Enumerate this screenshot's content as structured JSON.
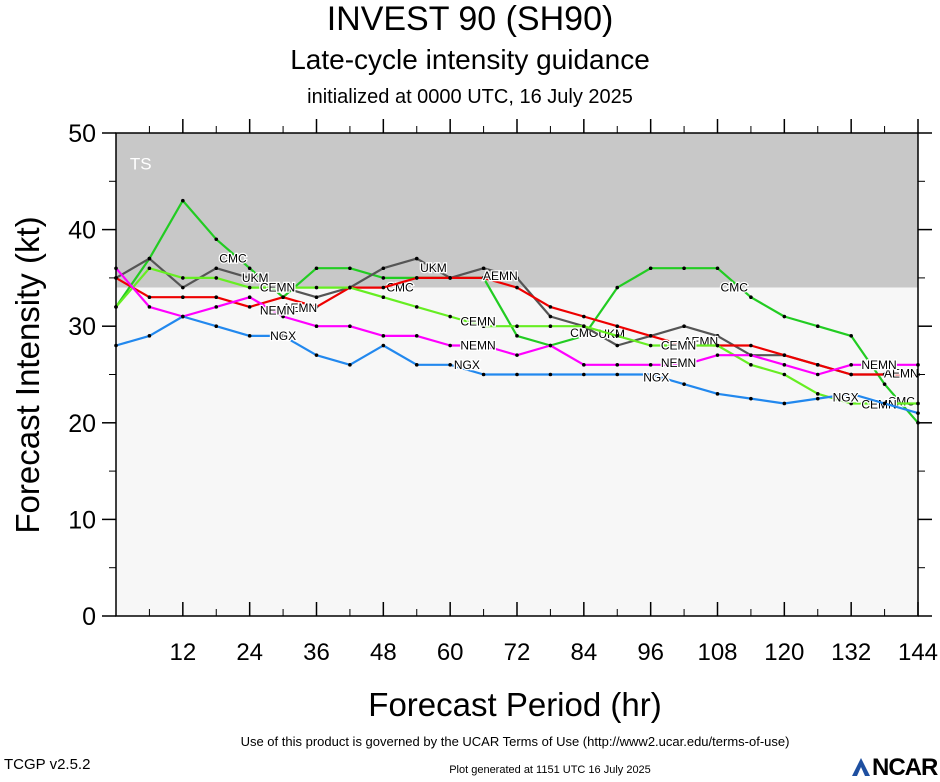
{
  "header": {
    "title": "INVEST 90 (SH90)",
    "subtitle": "Late-cycle intensity guidance",
    "initialized": "initialized at 0000 UTC, 16 July 2025"
  },
  "footer": {
    "terms": "Use of this product is governed by the UCAR Terms of Use (http://www2.ucar.edu/terms-of-use)",
    "version": "TCGP v2.5.2",
    "generated": "Plot generated at 1151 UTC   16 July 2025",
    "logo_text": "NCAR"
  },
  "chart_data": {
    "type": "line",
    "title": "INVEST 90 (SH90)",
    "xlabel": "Forecast Period (hr)",
    "ylabel": "Forecast Intensity (kt)",
    "xlim": [
      0,
      144
    ],
    "ylim": [
      0,
      50
    ],
    "x_ticks": [
      12,
      24,
      36,
      48,
      60,
      72,
      84,
      96,
      108,
      120,
      132,
      144
    ],
    "y_ticks": [
      0,
      10,
      20,
      30,
      40,
      50
    ],
    "bands": [
      {
        "label": "TS",
        "from": 34,
        "to": 50,
        "color": "#c8c8c8"
      },
      {
        "label": "",
        "from": 0,
        "to": 34,
        "color": "#f7f7f7"
      }
    ],
    "series": [
      {
        "name": "CMC",
        "color": "#22cc22",
        "x": [
          0,
          6,
          12,
          18,
          24,
          30,
          36,
          42,
          48,
          54,
          60,
          66,
          72,
          78,
          84,
          90,
          96,
          102,
          108,
          114,
          120,
          126,
          132,
          138,
          144
        ],
        "y": [
          32,
          37,
          43,
          39,
          36,
          33,
          36,
          36,
          35,
          35,
          35,
          35,
          29,
          28,
          29,
          34,
          36,
          36,
          36,
          33,
          31,
          30,
          29,
          24,
          20
        ],
        "labels": [
          {
            "x": 21,
            "y": 37,
            "text": "CMC"
          },
          {
            "x": 51,
            "y": 34,
            "text": "CMC"
          },
          {
            "x": 84,
            "y": 29.3,
            "text": "CMC"
          },
          {
            "x": 111,
            "y": 34,
            "text": "CMC"
          },
          {
            "x": 141,
            "y": 22.2,
            "text": "CMC"
          }
        ]
      },
      {
        "name": "UKM",
        "color": "#555555",
        "x": [
          0,
          6,
          12,
          18,
          24,
          30,
          36,
          42,
          48,
          54,
          60,
          66,
          72,
          78,
          84,
          90,
          96,
          102,
          108,
          114,
          120,
          126,
          132,
          138,
          144
        ],
        "y": [
          35,
          37,
          34,
          36,
          35,
          34,
          33,
          34,
          36,
          37,
          35,
          36,
          35,
          31,
          30,
          28,
          29,
          30,
          29,
          27,
          27,
          26,
          25,
          25,
          25
        ],
        "labels": [
          {
            "x": 25,
            "y": 35,
            "text": "UKM"
          },
          {
            "x": 57,
            "y": 36,
            "text": "UKM"
          },
          {
            "x": 89,
            "y": 29.2,
            "text": "UKM"
          }
        ]
      },
      {
        "name": "AEMN",
        "color": "#ee0000",
        "x": [
          0,
          6,
          12,
          18,
          24,
          30,
          36,
          42,
          48,
          54,
          60,
          66,
          72,
          78,
          84,
          90,
          96,
          102,
          108,
          114,
          120,
          126,
          132,
          138,
          144
        ],
        "y": [
          35,
          33,
          33,
          33,
          32,
          33,
          32,
          34,
          34,
          35,
          35,
          35,
          34,
          32,
          31,
          30,
          29,
          28,
          28,
          28,
          27,
          26,
          25,
          25,
          25
        ],
        "labels": [
          {
            "x": 33,
            "y": 31.9,
            "text": "AEMN"
          },
          {
            "x": 69,
            "y": 35.2,
            "text": "AEMN"
          },
          {
            "x": 105,
            "y": 28.4,
            "text": "AEMN"
          },
          {
            "x": 141,
            "y": 25.1,
            "text": "AEMN"
          }
        ]
      },
      {
        "name": "CEMN",
        "color": "#66ee22",
        "x": [
          0,
          6,
          12,
          18,
          24,
          30,
          36,
          42,
          48,
          54,
          60,
          66,
          72,
          78,
          84,
          90,
          96,
          102,
          108,
          114,
          120,
          126,
          132,
          138,
          144
        ],
        "y": [
          32,
          36,
          35,
          35,
          34,
          34,
          34,
          34,
          33,
          32,
          31,
          30,
          30,
          30,
          30,
          29,
          28,
          28,
          28,
          26,
          25,
          23,
          22,
          22,
          22
        ],
        "labels": [
          {
            "x": 29,
            "y": 34,
            "text": "CEMN"
          },
          {
            "x": 65,
            "y": 30.5,
            "text": "CEMN"
          },
          {
            "x": 101,
            "y": 28,
            "text": "CEMN"
          },
          {
            "x": 137,
            "y": 21.9,
            "text": "CEMN"
          }
        ]
      },
      {
        "name": "NEMN",
        "color": "#ff00ff",
        "x": [
          0,
          6,
          12,
          18,
          24,
          30,
          36,
          42,
          48,
          54,
          60,
          66,
          72,
          78,
          84,
          90,
          96,
          102,
          108,
          114,
          120,
          126,
          132,
          138,
          144
        ],
        "y": [
          36,
          32,
          31,
          32,
          33,
          31,
          30,
          30,
          29,
          29,
          28,
          28,
          27,
          28,
          26,
          26,
          26,
          26,
          27,
          27,
          26,
          25,
          26,
          26,
          26
        ],
        "labels": [
          {
            "x": 29,
            "y": 31.6,
            "text": "NEMN"
          },
          {
            "x": 65,
            "y": 28,
            "text": "NEMN"
          },
          {
            "x": 101,
            "y": 26.2,
            "text": "NEMN"
          },
          {
            "x": 137,
            "y": 26,
            "text": "NEMN"
          }
        ]
      },
      {
        "name": "NGX",
        "color": "#2288ee",
        "x": [
          0,
          6,
          12,
          18,
          24,
          30,
          36,
          42,
          48,
          54,
          60,
          66,
          72,
          78,
          84,
          90,
          96,
          102,
          108,
          114,
          120,
          126,
          132,
          138,
          144
        ],
        "y": [
          28,
          29,
          31,
          30,
          29,
          29,
          27,
          26,
          28,
          26,
          26,
          25,
          25,
          25,
          25,
          25,
          25,
          24,
          23,
          22.5,
          22,
          22.5,
          23,
          22,
          21
        ],
        "labels": [
          {
            "x": 30,
            "y": 29,
            "text": "NGX"
          },
          {
            "x": 63,
            "y": 26,
            "text": "NGX"
          },
          {
            "x": 97,
            "y": 24.7,
            "text": "NGX"
          },
          {
            "x": 131,
            "y": 22.6,
            "text": "NGX"
          }
        ]
      }
    ]
  }
}
